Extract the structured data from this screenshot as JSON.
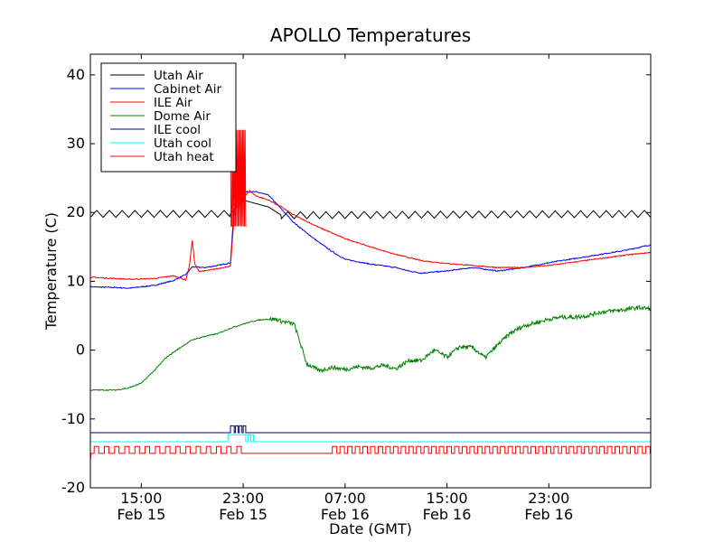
{
  "chart_data": {
    "type": "line",
    "title": "APOLLO Temperatures",
    "xlabel": "Date (GMT)",
    "ylabel": "Temperature (C)",
    "x_unit": "hours since Feb 15 11:00 GMT",
    "xlim": [
      0,
      44
    ],
    "ylim": [
      -20,
      43
    ],
    "yticks": [
      -20,
      -10,
      0,
      10,
      20,
      30,
      40
    ],
    "ytick_labels": [
      "-20",
      "-10",
      "0",
      "10",
      "20",
      "30",
      "40"
    ],
    "xticks": [
      {
        "x": 4,
        "time": "15:00",
        "date": "Feb 15"
      },
      {
        "x": 12,
        "time": "23:00",
        "date": "Feb 15"
      },
      {
        "x": 20,
        "time": "07:00",
        "date": "Feb 16"
      },
      {
        "x": 28,
        "time": "15:00",
        "date": "Feb 16"
      },
      {
        "x": 36,
        "time": "23:00",
        "date": "Feb 16"
      }
    ],
    "legend_position": "top-left",
    "series": [
      {
        "name": "Utah Air",
        "color": "#000000",
        "style": "sawtooth",
        "x": [
          0,
          11,
          12,
          14,
          15,
          44
        ],
        "y": [
          19.8,
          19.8,
          21.8,
          20.8,
          19.6,
          19.8
        ],
        "osc_amp": 0.5,
        "osc_period": 1.0
      },
      {
        "name": "Cabinet Air",
        "color": "#0000ff",
        "style": "line",
        "x": [
          0,
          2,
          3,
          5,
          6.5,
          7.5,
          8.0,
          9,
          10,
          11,
          11.3,
          11.8,
          12.2,
          13,
          14,
          15,
          16,
          17,
          18,
          19,
          20,
          22,
          24,
          25,
          26,
          28,
          30,
          32,
          34,
          36,
          38,
          40,
          42,
          44
        ],
        "y": [
          9.2,
          9.1,
          9.0,
          9.4,
          10.1,
          11.0,
          12.1,
          12.0,
          12.3,
          12.7,
          21.0,
          22.5,
          23.0,
          23.0,
          22.5,
          20.5,
          18.5,
          17.0,
          15.6,
          14.3,
          13.2,
          12.5,
          12.0,
          11.5,
          11.2,
          11.5,
          12.0,
          11.5,
          12.0,
          12.7,
          13.3,
          13.9,
          14.5,
          15.3
        ]
      },
      {
        "name": "ILE Air",
        "color": "#ff0000",
        "style": "line",
        "x": [
          0,
          2,
          3,
          5,
          6.5,
          7.5,
          7.8,
          8.0,
          8.2,
          8.5,
          9,
          11,
          11.3,
          11.8,
          12.2,
          12.5,
          13,
          14,
          15,
          16,
          18,
          20,
          22,
          24,
          26,
          28,
          30,
          32,
          34,
          36,
          38,
          40,
          42,
          44
        ],
        "y": [
          10.6,
          10.4,
          10.3,
          10.4,
          10.8,
          10.2,
          12.5,
          16.0,
          12.5,
          11.5,
          11.5,
          12.2,
          19.5,
          25.5,
          22.5,
          23.2,
          22.4,
          21.8,
          20.8,
          19.6,
          17.8,
          16.2,
          15.0,
          13.9,
          13.0,
          12.6,
          12.3,
          12.0,
          12.0,
          12.3,
          12.8,
          13.3,
          13.8,
          14.2
        ]
      },
      {
        "name": "Dome Air",
        "color": "#008000",
        "style": "line",
        "x": [
          0,
          2,
          3,
          4,
          5,
          6,
          7,
          8,
          9,
          10,
          11,
          12,
          13,
          13.8,
          14.2,
          14.6,
          15,
          16,
          17,
          18,
          19,
          20,
          21,
          22,
          23,
          24,
          25,
          26,
          27,
          28,
          29,
          30,
          31,
          32,
          33,
          34,
          35,
          36,
          37,
          38,
          39,
          40,
          41,
          42,
          43,
          44
        ],
        "y": [
          -5.8,
          -5.8,
          -5.5,
          -4.8,
          -3.0,
          -1.0,
          0.3,
          1.5,
          2.0,
          2.4,
          3.2,
          3.8,
          4.3,
          4.5,
          4.5,
          4.5,
          4.2,
          3.8,
          -2.0,
          -3.0,
          -2.5,
          -2.8,
          -2.4,
          -2.6,
          -2.2,
          -2.7,
          -1.5,
          -1.5,
          0.0,
          -1.0,
          0.5,
          0.4,
          -1.1,
          0.8,
          2.5,
          3.5,
          4.0,
          4.5,
          4.8,
          4.8,
          5.0,
          5.5,
          5.7,
          5.9,
          6.2,
          6.0
        ]
      },
      {
        "name": "ILE cool",
        "color": "#000080",
        "style": "spikes",
        "base": -12,
        "high": -11,
        "spikes": [
          [
            11.0,
            11.3
          ],
          [
            11.4,
            11.6
          ],
          [
            11.7,
            11.9
          ],
          [
            12.0,
            12.2
          ]
        ]
      },
      {
        "name": "Utah cool",
        "color": "#00ffff",
        "style": "step",
        "x": [
          0,
          10.8,
          10.8,
          12.8,
          12.8,
          44
        ],
        "y": [
          -13.3,
          -13.3,
          -12.3,
          -12.3,
          -13.3,
          -13.3
        ],
        "pulses": [
          [
            12.2,
            12.4
          ],
          [
            12.6,
            12.8
          ]
        ]
      },
      {
        "name": "Utah heat",
        "color": "#ff0000",
        "style": "pulses",
        "base": -15,
        "high": -14,
        "pulse_width": 0.35,
        "pulse_starts": [
          0.3,
          1.1,
          1.9,
          2.7,
          3.5,
          4.3,
          5.1,
          5.9,
          6.7,
          7.5,
          8.3,
          9.1,
          9.9,
          10.7,
          11.5,
          19.0,
          19.6,
          20.2,
          20.8,
          21.4,
          22.0,
          22.6,
          23.2,
          23.8,
          24.4,
          25.0,
          25.6,
          26.2,
          26.8,
          27.4,
          28.0,
          28.6,
          29.2,
          29.8,
          30.4,
          31.0,
          31.6,
          32.2,
          32.8,
          33.4,
          34.0,
          34.6,
          35.2,
          35.8,
          36.4,
          37.0,
          37.6,
          38.2,
          38.8,
          39.4,
          40.0,
          40.6,
          41.2,
          41.8,
          42.4,
          43.0,
          43.6
        ]
      }
    ]
  }
}
